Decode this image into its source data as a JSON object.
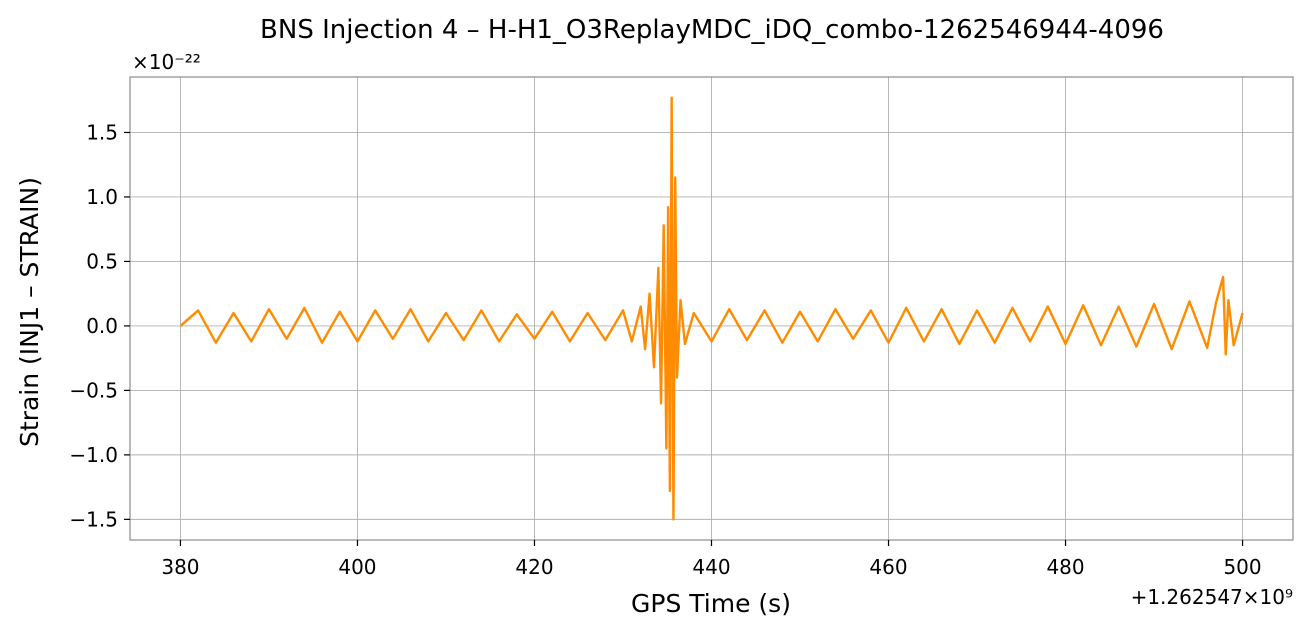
{
  "chart_data": {
    "type": "line",
    "title": "BNS Injection 4 – H-H1_O3ReplayMDC_iDQ_combo-1262546944-4096",
    "xlabel": "GPS Time (s)",
    "ylabel": "Strain (INJ1 – STRAIN)",
    "x_offset_label": "+1.262547×10⁹",
    "y_exponent_label": "×10⁻²²",
    "xlim": [
      374.3,
      505.7
    ],
    "ylim": [
      -1.66,
      1.93
    ],
    "x_ticks": [
      380,
      400,
      420,
      440,
      460,
      480,
      500
    ],
    "x_tick_labels": [
      "380",
      "400",
      "420",
      "440",
      "460",
      "480",
      "500"
    ],
    "y_ticks": [
      -1.5,
      -1.0,
      -0.5,
      0.0,
      0.5,
      1.0,
      1.5
    ],
    "y_tick_labels": [
      "−1.5",
      "−1.0",
      "−0.5",
      "0.0",
      "0.5",
      "1.0",
      "1.5"
    ],
    "grid": true,
    "series": [
      {
        "color": "#ff8c00",
        "x": [
          380,
          382,
          384,
          386,
          388,
          390,
          392,
          394,
          396,
          398,
          400,
          402,
          404,
          406,
          408,
          410,
          412,
          414,
          416,
          418,
          420,
          422,
          424,
          426,
          428,
          430,
          431,
          432,
          432.5,
          433,
          433.5,
          434,
          434.3,
          434.6,
          434.9,
          435.1,
          435.3,
          435.5,
          435.7,
          435.9,
          436.1,
          436.5,
          437,
          438,
          440,
          442,
          444,
          446,
          448,
          450,
          452,
          454,
          456,
          458,
          460,
          462,
          464,
          466,
          468,
          470,
          472,
          474,
          476,
          478,
          480,
          482,
          484,
          486,
          488,
          490,
          492,
          494,
          496,
          497,
          497.8,
          498.1,
          498.4,
          499,
          500
        ],
        "y": [
          0.0,
          0.12,
          -0.13,
          0.1,
          -0.12,
          0.13,
          -0.1,
          0.14,
          -0.13,
          0.11,
          -0.12,
          0.12,
          -0.1,
          0.13,
          -0.12,
          0.1,
          -0.11,
          0.12,
          -0.12,
          0.09,
          -0.1,
          0.11,
          -0.12,
          0.1,
          -0.11,
          0.12,
          -0.12,
          0.15,
          -0.18,
          0.25,
          -0.32,
          0.45,
          -0.6,
          0.78,
          -0.95,
          0.92,
          -1.28,
          1.77,
          -1.5,
          1.15,
          -0.4,
          0.2,
          -0.14,
          0.1,
          -0.12,
          0.13,
          -0.11,
          0.12,
          -0.13,
          0.11,
          -0.12,
          0.13,
          -0.1,
          0.12,
          -0.13,
          0.14,
          -0.12,
          0.13,
          -0.14,
          0.12,
          -0.13,
          0.14,
          -0.12,
          0.15,
          -0.14,
          0.16,
          -0.15,
          0.15,
          -0.16,
          0.17,
          -0.18,
          0.19,
          -0.17,
          0.18,
          0.38,
          -0.22,
          0.2,
          -0.15,
          0.1
        ]
      }
    ]
  }
}
